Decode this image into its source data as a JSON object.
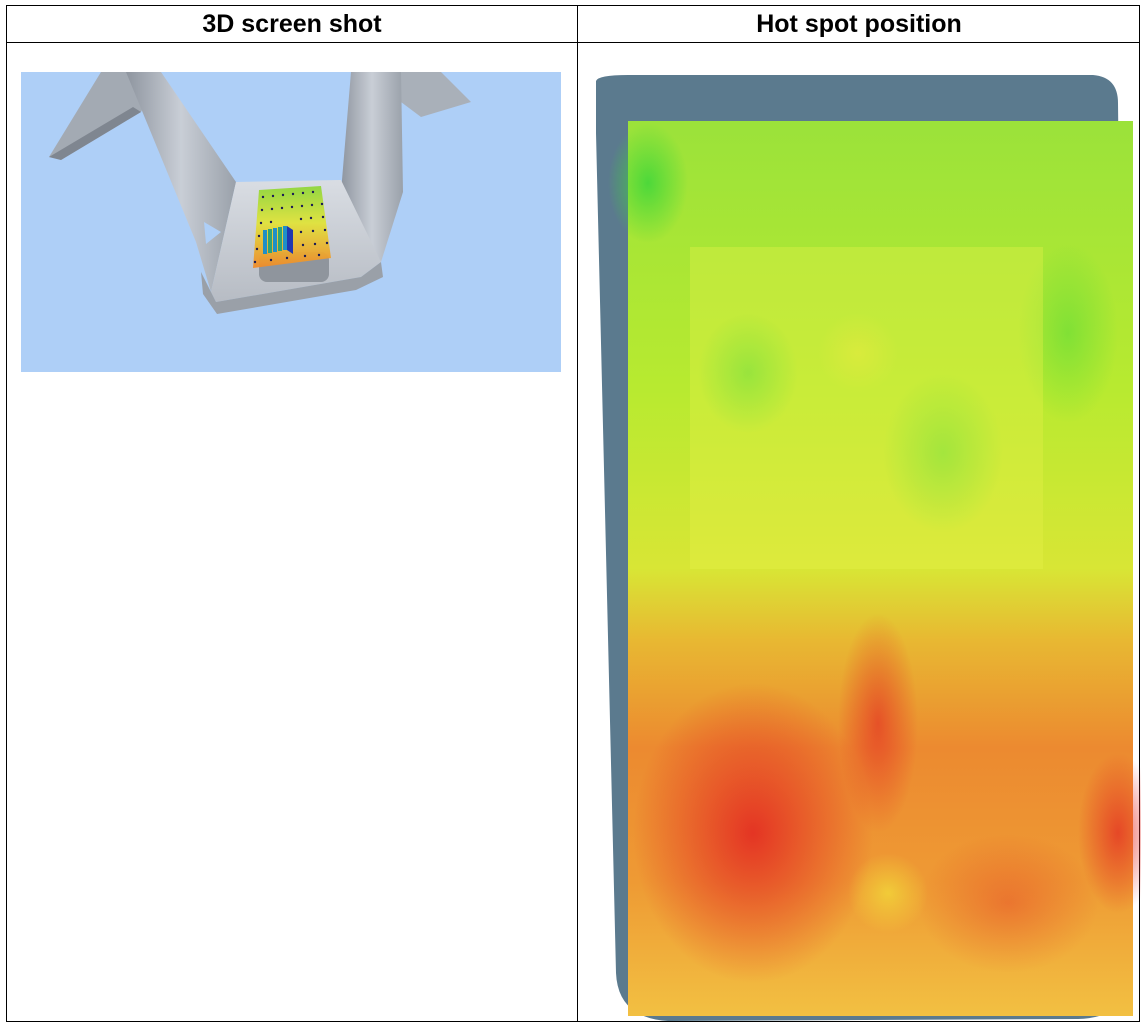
{
  "table": {
    "headers": [
      {
        "label": "3D screen shot"
      },
      {
        "label": "Hot spot position"
      }
    ]
  },
  "images": {
    "screenshot_3d": {
      "icon": "cad-3d-view-image",
      "background_color": "#aecff7"
    },
    "hotspot_map": {
      "icon": "thermal-heatmap-image",
      "frame_color": "#5b7a8e"
    }
  }
}
